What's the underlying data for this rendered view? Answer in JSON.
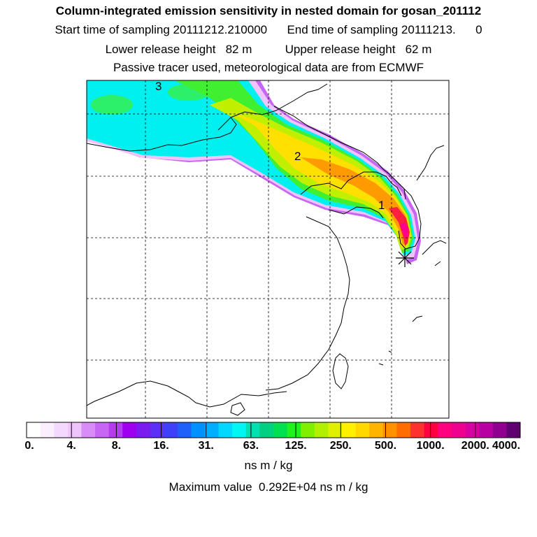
{
  "titles": {
    "line1": "Column-integrated emission sensitivity in nested domain for gosan_201112",
    "line2": "Start time of sampling 20111212.210000      End time of sampling 20111213.      0",
    "line3": "Lower release height   82 m          Upper release height   62 m",
    "line4": "Passive tracer used, meteorological data are from ECMWF"
  },
  "map": {
    "markers": [
      "1",
      "2",
      "3"
    ],
    "receptor_icon": "asterisk-receptor-icon"
  },
  "colorbar": {
    "colors": [
      "#ffffff",
      "#fbeefe",
      "#f5d9fd",
      "#efc3fc",
      "#d98cf5",
      "#c766f2",
      "#b43df0",
      "#a000f0",
      "#7a1cf0",
      "#5c30f5",
      "#3f40fa",
      "#2060fa",
      "#0090ff",
      "#00b0ff",
      "#00d8ff",
      "#00f5f5",
      "#00e0b0",
      "#00d080",
      "#00e050",
      "#20f020",
      "#80f000",
      "#b0f000",
      "#e0f000",
      "#fff000",
      "#ffd800",
      "#ffb400",
      "#ff9000",
      "#ff6c00",
      "#ff3030",
      "#ff0040",
      "#ff0080",
      "#f00090",
      "#d800a0",
      "#b800a0",
      "#900090",
      "#600070"
    ],
    "tick_labels": [
      "0.",
      "4.",
      "8.",
      "16.",
      "31.",
      "63.",
      "125.",
      "250.",
      "500.",
      "1000.",
      "2000.",
      "4000."
    ],
    "unit": "ns m / kg"
  },
  "max_value_text": "Maximum value  0.292E+04 ns m / kg"
}
